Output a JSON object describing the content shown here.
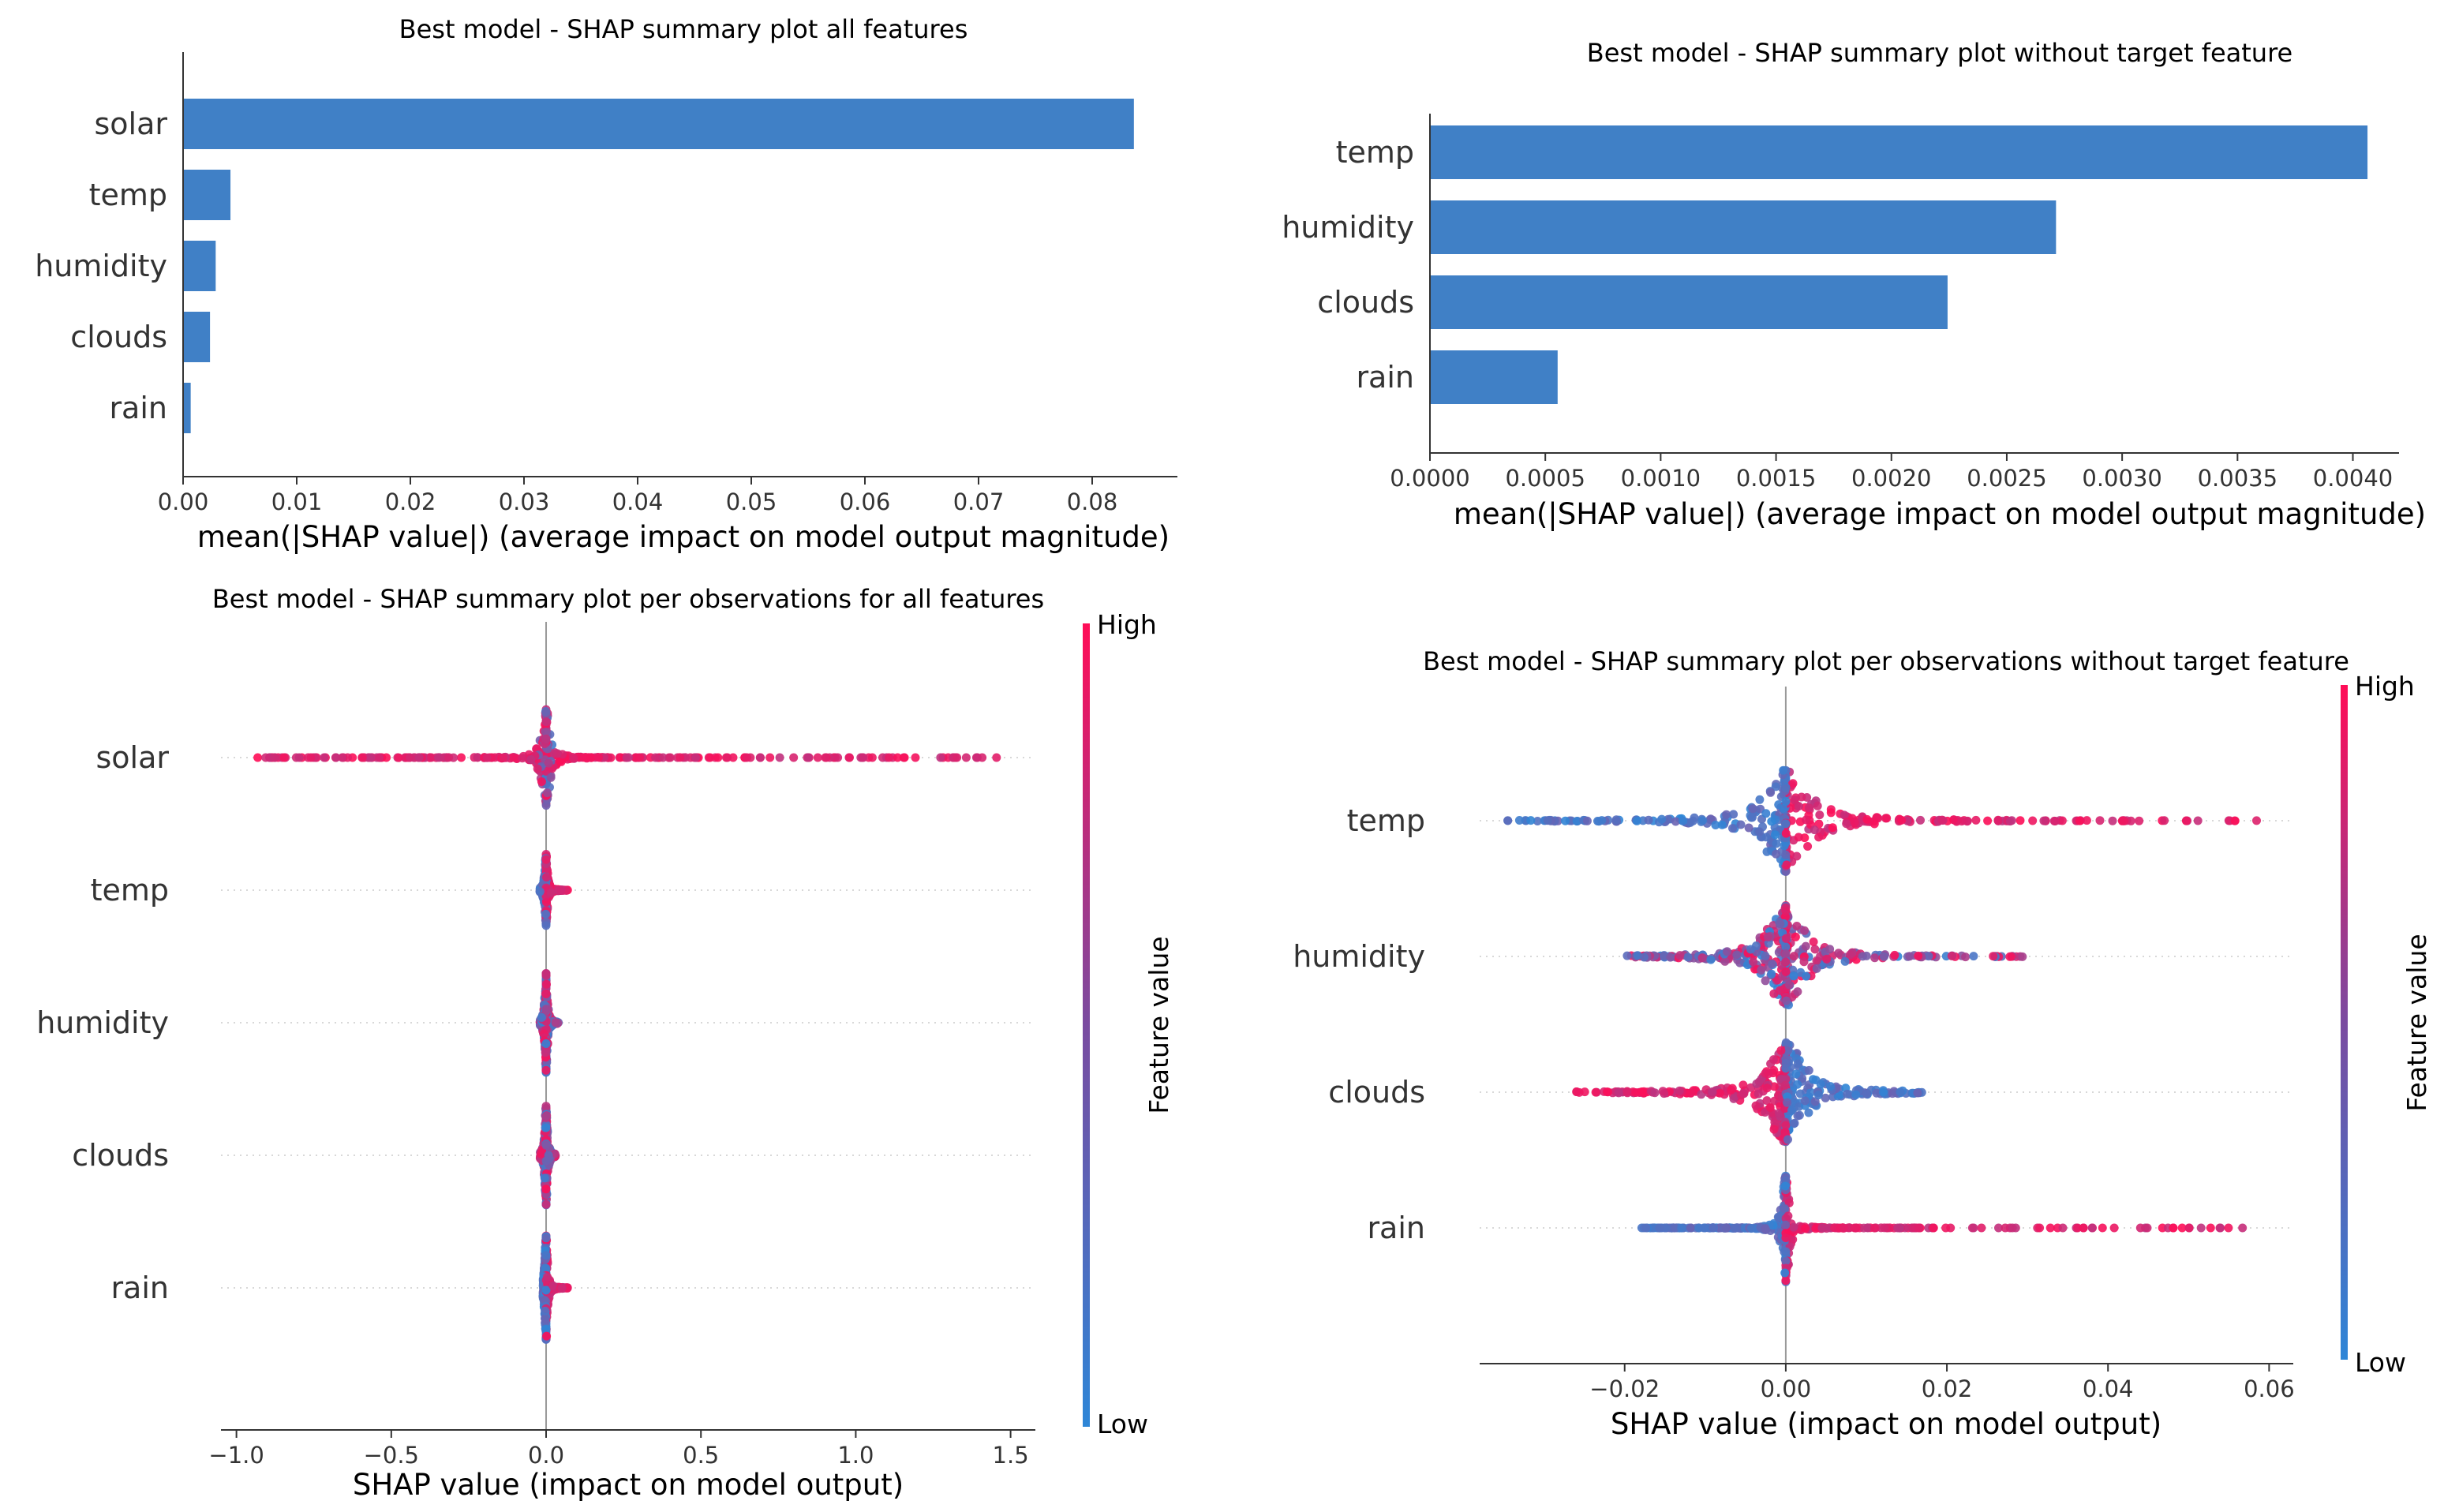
{
  "colors": {
    "bar": "#4080C6",
    "low": "#2E86D7",
    "high": "#FF0D57",
    "axis": "#333333",
    "zero_line": "#999999"
  },
  "chart_data": [
    {
      "type": "bar",
      "title": "Best model - SHAP summary plot all features",
      "orientation": "horizontal",
      "categories": [
        "solar",
        "temp",
        "humidity",
        "clouds",
        "rain"
      ],
      "values": [
        0.0836,
        0.0041,
        0.0028,
        0.0023,
        0.0006
      ],
      "xlabel": "mean(|SHAP value|) (average impact on model output magnitude)",
      "xlim": [
        0,
        0.0875
      ],
      "xticks": [
        0.0,
        0.01,
        0.02,
        0.03,
        0.04,
        0.05,
        0.06,
        0.07,
        0.08
      ],
      "xtick_labels": [
        "0.00",
        "0.01",
        "0.02",
        "0.03",
        "0.04",
        "0.05",
        "0.06",
        "0.07",
        "0.08"
      ]
    },
    {
      "type": "bar",
      "title": "Best model - SHAP summary plot without target feature",
      "orientation": "horizontal",
      "categories": [
        "temp",
        "humidity",
        "clouds",
        "rain"
      ],
      "values": [
        0.00406,
        0.00271,
        0.00224,
        0.00055
      ],
      "xlabel": "mean(|SHAP value|) (average impact on model output magnitude)",
      "xlim": [
        0,
        0.0042
      ],
      "xticks": [
        0.0,
        0.0005,
        0.001,
        0.0015,
        0.002,
        0.0025,
        0.003,
        0.0035,
        0.004
      ],
      "xtick_labels": [
        "0.0000",
        "0.0005",
        "0.0010",
        "0.0015",
        "0.0020",
        "0.0025",
        "0.0030",
        "0.0035",
        "0.0040"
      ]
    },
    {
      "type": "scatter",
      "subtype": "beeswarm",
      "title": "Best model - SHAP summary plot per observations for all features",
      "xlabel": "SHAP value (impact on model output)",
      "xlim": [
        -1.05,
        1.58
      ],
      "xticks": [
        -1.0,
        -0.5,
        0.0,
        0.5,
        1.0,
        1.5
      ],
      "xtick_labels": [
        "−1.0",
        "−0.5",
        "0.0",
        "0.5",
        "1.0",
        "1.5"
      ],
      "colorbar": {
        "label": "Feature value",
        "high": "High",
        "low": "Low"
      },
      "features": [
        {
          "name": "solar",
          "min": -0.94,
          "max": 1.46,
          "core": 0.03,
          "height": 0.75,
          "high_side": "both"
        },
        {
          "name": "temp",
          "min": -0.02,
          "max": 0.07,
          "core": 0.01,
          "height": 0.55,
          "high_side": "right"
        },
        {
          "name": "humidity",
          "min": -0.02,
          "max": 0.04,
          "core": 0.01,
          "height": 0.75,
          "high_side": "mixed"
        },
        {
          "name": "clouds",
          "min": -0.02,
          "max": 0.03,
          "core": 0.01,
          "height": 0.75,
          "high_side": "mixed"
        },
        {
          "name": "rain",
          "min": -0.01,
          "max": 0.07,
          "core": 0.01,
          "height": 0.8,
          "high_side": "right"
        }
      ]
    },
    {
      "type": "scatter",
      "subtype": "beeswarm",
      "title": "Best model - SHAP summary plot per observations without target feature",
      "xlabel": "SHAP value (impact on model output)",
      "xlim": [
        -0.038,
        0.063
      ],
      "xticks": [
        -0.02,
        0.0,
        0.02,
        0.04,
        0.06
      ],
      "xtick_labels": [
        "−0.02",
        "0.00",
        "0.02",
        "0.04",
        "0.06"
      ],
      "colorbar": {
        "label": "Feature value",
        "high": "High",
        "low": "Low"
      },
      "features": [
        {
          "name": "temp",
          "min": -0.035,
          "max": 0.059,
          "core": 0.006,
          "height": 0.75,
          "high_side": "right"
        },
        {
          "name": "humidity",
          "min": -0.02,
          "max": 0.03,
          "core": 0.005,
          "height": 0.75,
          "high_side": "mixed"
        },
        {
          "name": "clouds",
          "min": -0.026,
          "max": 0.017,
          "core": 0.005,
          "height": 0.75,
          "high_side": "left"
        },
        {
          "name": "rain",
          "min": -0.018,
          "max": 0.057,
          "core": 0.001,
          "height": 0.8,
          "high_side": "right"
        }
      ]
    }
  ]
}
